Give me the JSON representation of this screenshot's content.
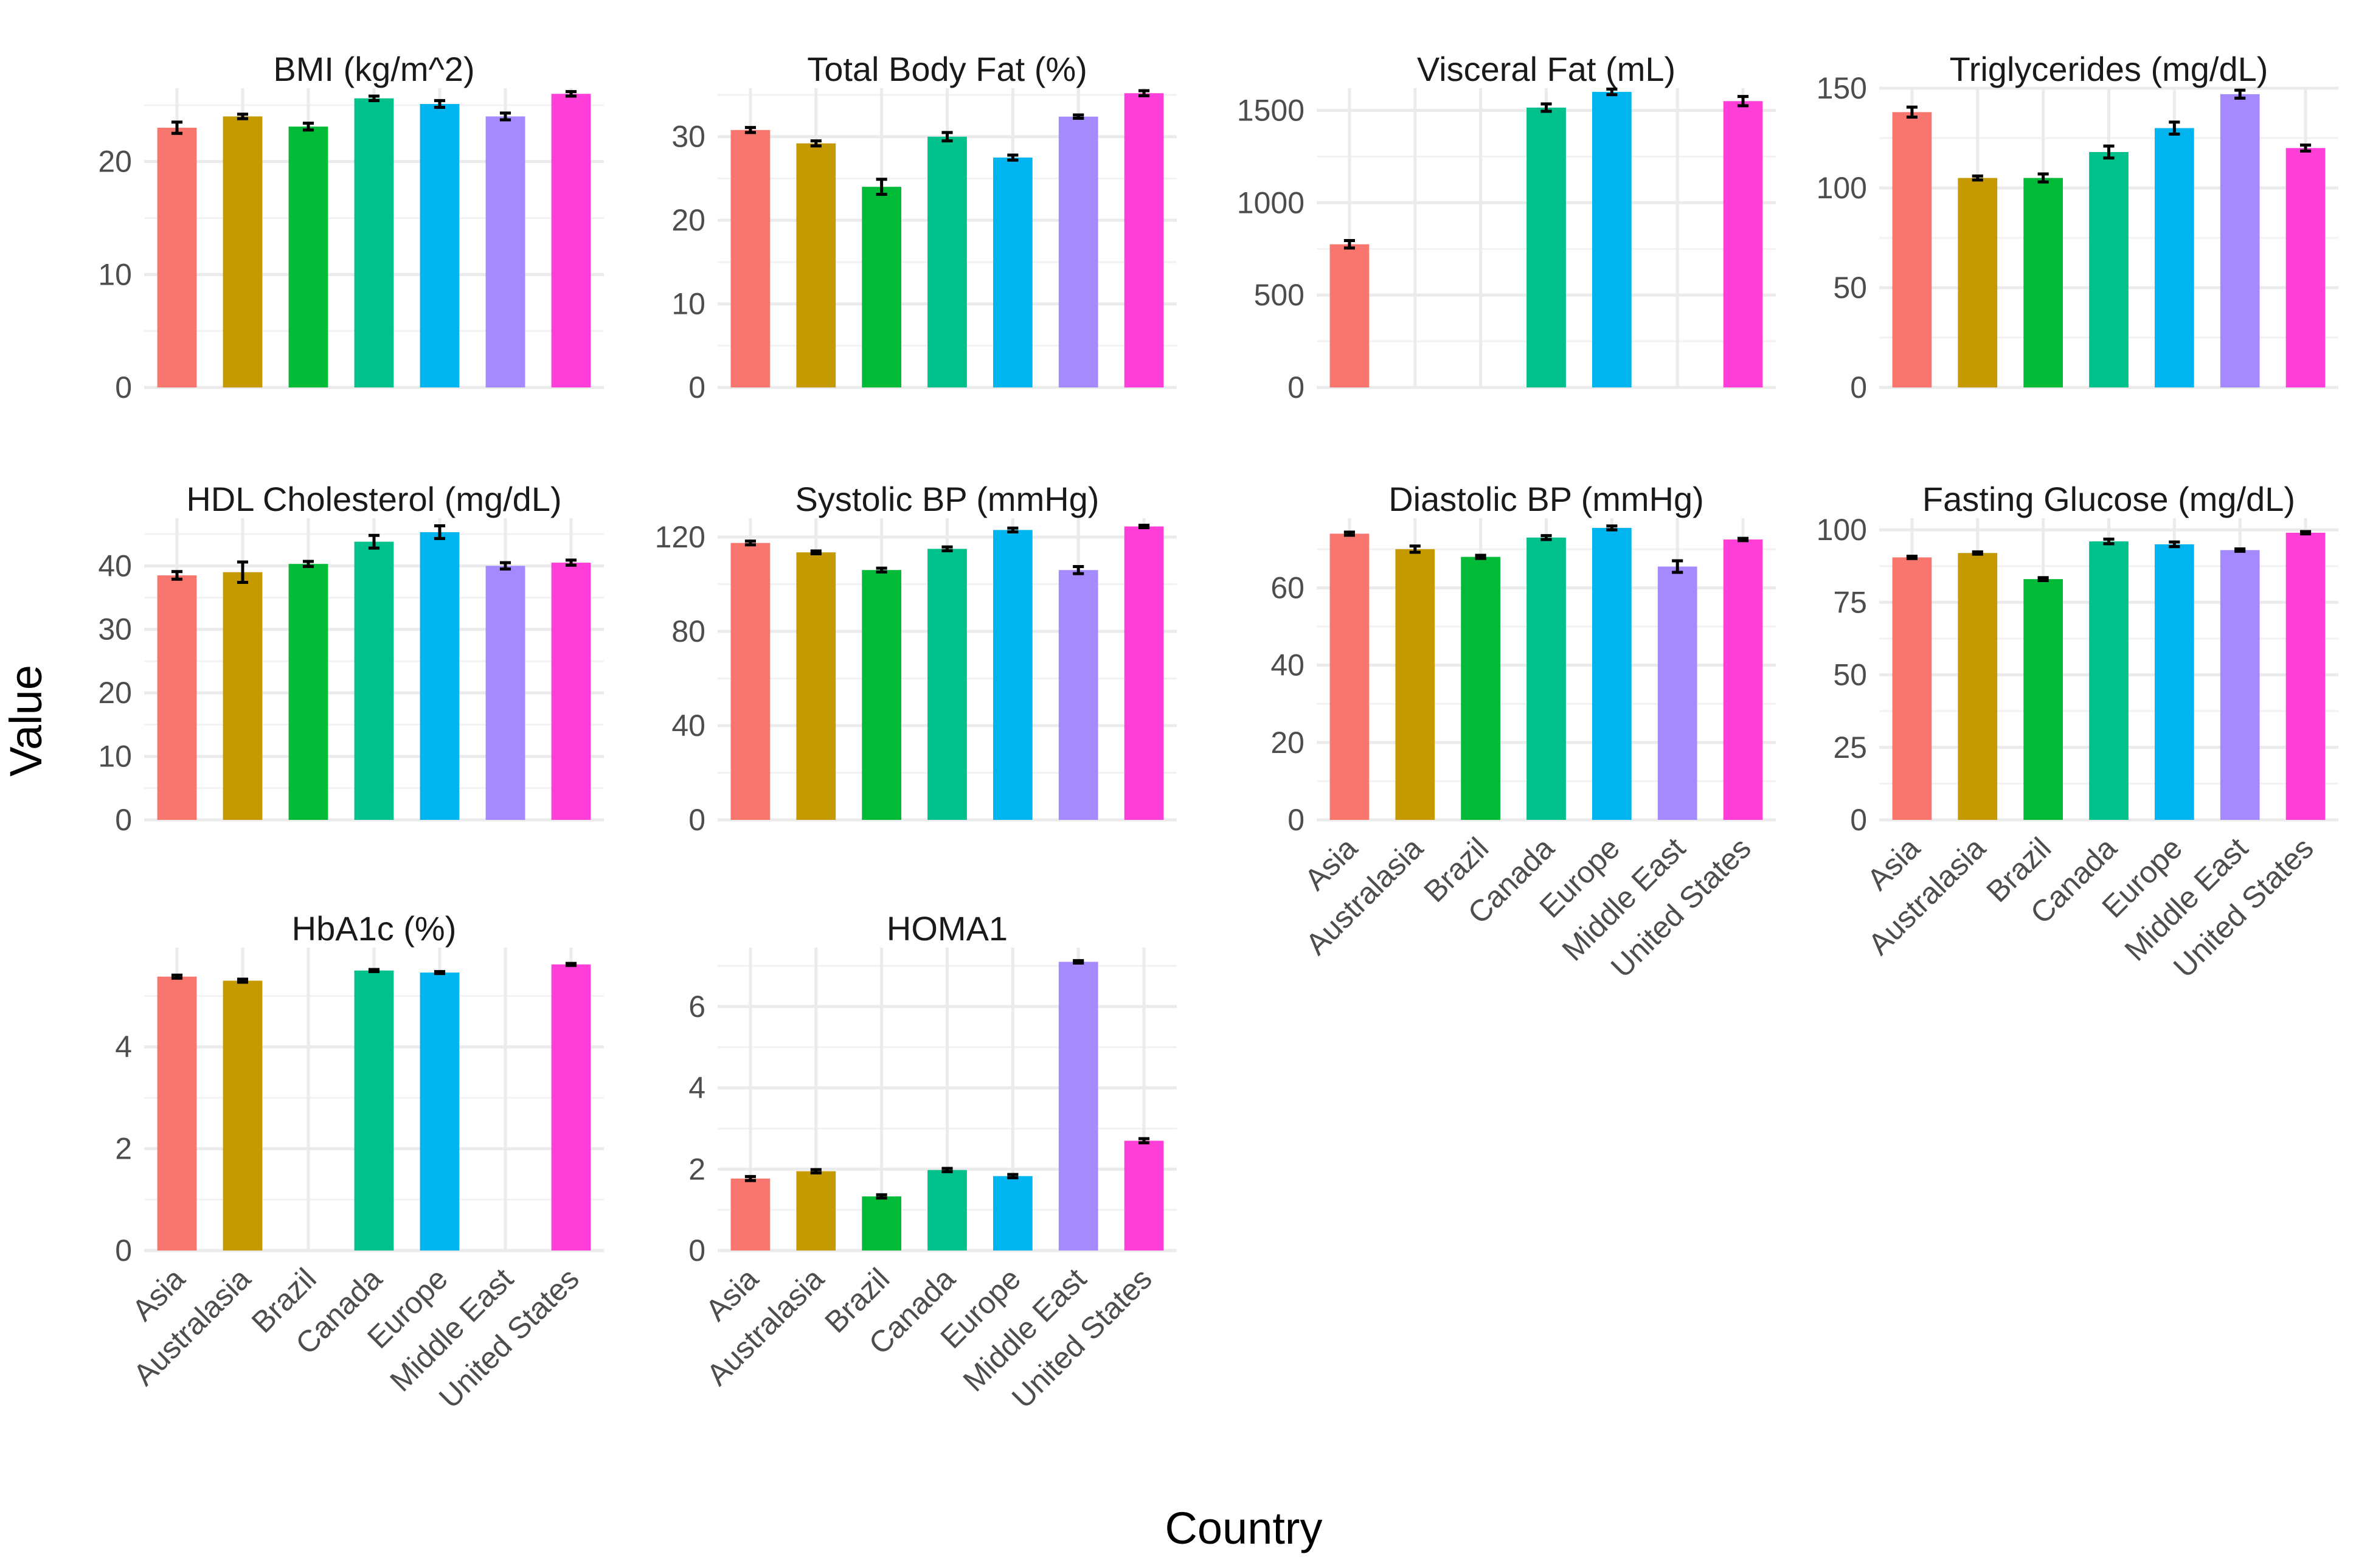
{
  "chart_data": {
    "type": "bar",
    "layout": "faceted bar chart with error bars",
    "xlabel": "Country",
    "ylabel": "Value",
    "categories": [
      "Asia",
      "Australasia",
      "Brazil",
      "Canada",
      "Europe",
      "Middle East",
      "United States"
    ],
    "colors": [
      "#F8766D",
      "#C49A00",
      "#00BA38",
      "#00C08B",
      "#00B4EF",
      "#A58AFF",
      "#FF3FD8"
    ],
    "panels": [
      {
        "title": "BMI (kg/m^2)",
        "ylim": [
          0,
          26.5
        ],
        "yticks": [
          0,
          10,
          20
        ],
        "values": [
          23.0,
          24.0,
          23.1,
          25.6,
          25.1,
          24.0,
          26.0
        ],
        "errors": [
          0.5,
          0.2,
          0.3,
          0.2,
          0.3,
          0.3,
          0.2
        ]
      },
      {
        "title": "Total Body Fat (%)",
        "ylim": [
          0,
          35.8
        ],
        "yticks": [
          0,
          10,
          20,
          30
        ],
        "values": [
          30.8,
          29.2,
          24.0,
          30.0,
          27.5,
          32.4,
          35.2
        ],
        "errors": [
          0.3,
          0.3,
          0.9,
          0.5,
          0.3,
          0.2,
          0.3
        ]
      },
      {
        "title": "Visceral Fat (mL)",
        "ylim": [
          0,
          1620
        ],
        "yticks": [
          0,
          500,
          1000,
          1500
        ],
        "values": [
          775,
          null,
          null,
          1515,
          1600,
          null,
          1550
        ],
        "errors": [
          20,
          null,
          null,
          20,
          15,
          null,
          25
        ]
      },
      {
        "title": "Triglycerides (mg/dL)",
        "ylim": [
          0,
          150
        ],
        "yticks": [
          0,
          50,
          100,
          150
        ],
        "values": [
          138,
          105,
          105,
          118,
          130,
          147,
          120
        ],
        "errors": [
          2.5,
          1,
          2,
          3,
          3,
          2,
          1.5
        ]
      },
      {
        "title": "HDL Cholesterol (mg/dL)",
        "ylim": [
          0,
          47.5
        ],
        "yticks": [
          0,
          10,
          20,
          30,
          40
        ],
        "values": [
          38.5,
          39.0,
          40.3,
          43.8,
          45.3,
          40.0,
          40.5
        ],
        "errors": [
          0.6,
          1.6,
          0.4,
          1.0,
          1.0,
          0.5,
          0.4
        ]
      },
      {
        "title": "Systolic BP (mmHg)",
        "ylim": [
          0,
          128
        ],
        "yticks": [
          0,
          40,
          80,
          120
        ],
        "values": [
          117.5,
          113.5,
          106.0,
          115.0,
          123.0,
          106.0,
          124.5
        ],
        "errors": [
          0.8,
          0.6,
          0.8,
          0.8,
          0.8,
          1.5,
          0.5
        ]
      },
      {
        "title": "Diastolic BP (mmHg)",
        "ylim": [
          0,
          78
        ],
        "yticks": [
          0,
          20,
          40,
          60
        ],
        "values": [
          74.0,
          70.0,
          68.0,
          73.0,
          75.5,
          65.5,
          72.5
        ],
        "errors": [
          0.4,
          0.8,
          0.4,
          0.5,
          0.5,
          1.5,
          0.3
        ]
      },
      {
        "title": "Fasting Glucose (mg/dL)",
        "ylim": [
          0,
          104
        ],
        "yticks": [
          0,
          25,
          50,
          75,
          100
        ],
        "values": [
          90.5,
          92.0,
          83.0,
          96.0,
          95.0,
          93.0,
          99.0
        ],
        "errors": [
          0.4,
          0.4,
          0.5,
          0.8,
          0.8,
          0.4,
          0.4
        ]
      },
      {
        "title": "HbA1c (%)",
        "ylim": [
          0,
          5.95
        ],
        "yticks": [
          0,
          2,
          4
        ],
        "values": [
          5.38,
          5.3,
          null,
          5.5,
          5.46,
          null,
          5.62
        ],
        "errors": [
          0.03,
          0.03,
          null,
          0.02,
          0.02,
          null,
          0.02
        ]
      },
      {
        "title": "HOMA1",
        "ylim": [
          0,
          7.45
        ],
        "yticks": [
          0,
          2,
          4,
          6
        ],
        "values": [
          1.77,
          1.95,
          1.33,
          1.98,
          1.83,
          7.1,
          2.7
        ],
        "errors": [
          0.05,
          0.04,
          0.04,
          0.04,
          0.04,
          0.03,
          0.05
        ]
      }
    ]
  }
}
